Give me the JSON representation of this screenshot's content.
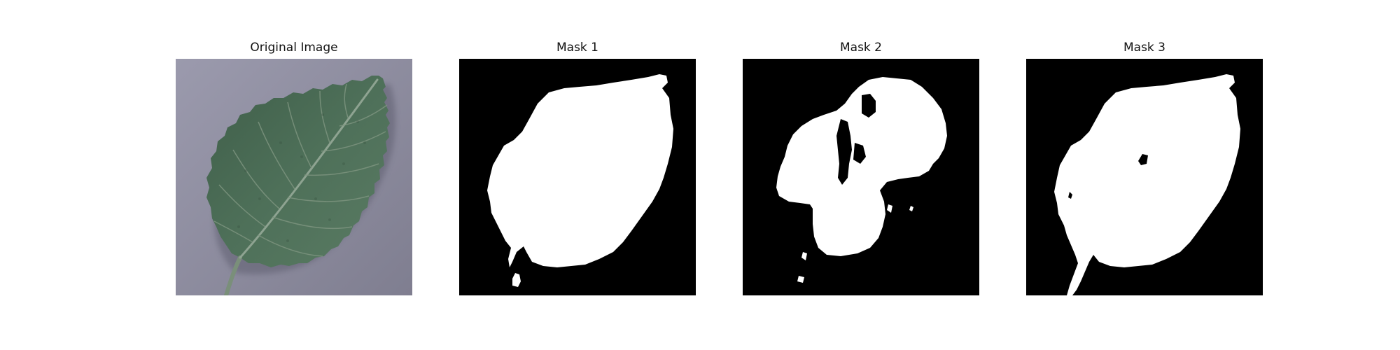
{
  "figure": {
    "panels": [
      {
        "title": "Original Image"
      },
      {
        "title": "Mask 1"
      },
      {
        "title": "Mask 2"
      },
      {
        "title": "Mask 3"
      }
    ]
  },
  "colors": {
    "background_surface": "#8f8ea0",
    "leaf": "#4a6a55",
    "leaf_vein": "#8ea391",
    "mask_background": "#000000",
    "mask_foreground": "#ffffff"
  }
}
